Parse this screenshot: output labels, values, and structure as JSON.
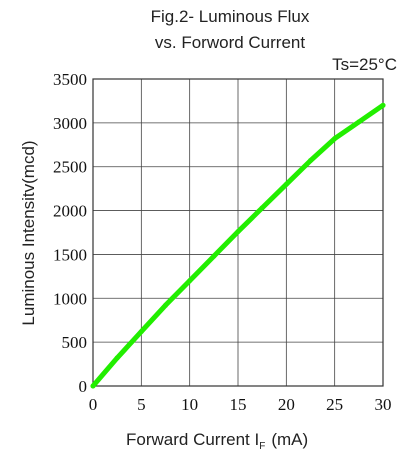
{
  "chart_data": {
    "type": "line",
    "title_line1": "Fig.2- Luminous Flux",
    "title_line2": "vs. Forword Current",
    "condition": "Ts=25°C",
    "xlabel_main": "Forward Current  I",
    "xlabel_sub": "F",
    "xlabel_unit": "(mA)",
    "ylabel": "Luminous Intensitv(mcd)",
    "xlim": [
      0,
      30
    ],
    "ylim": [
      0,
      3500
    ],
    "x_ticks": [
      "0",
      "5",
      "10",
      "15",
      "20",
      "25",
      "30"
    ],
    "y_ticks": [
      "0",
      "500",
      "1000",
      "1500",
      "2000",
      "2500",
      "3000",
      "3500"
    ],
    "grid": true,
    "line_color": "#22ee00",
    "series": [
      {
        "x": [
          0,
          2.5,
          5,
          7.5,
          10,
          12.5,
          15,
          17.5,
          20,
          22.5,
          25,
          27.5,
          30
        ],
        "y": [
          0,
          320,
          620,
          920,
          1200,
          1480,
          1760,
          2030,
          2300,
          2570,
          2820,
          3010,
          3200
        ]
      }
    ]
  }
}
